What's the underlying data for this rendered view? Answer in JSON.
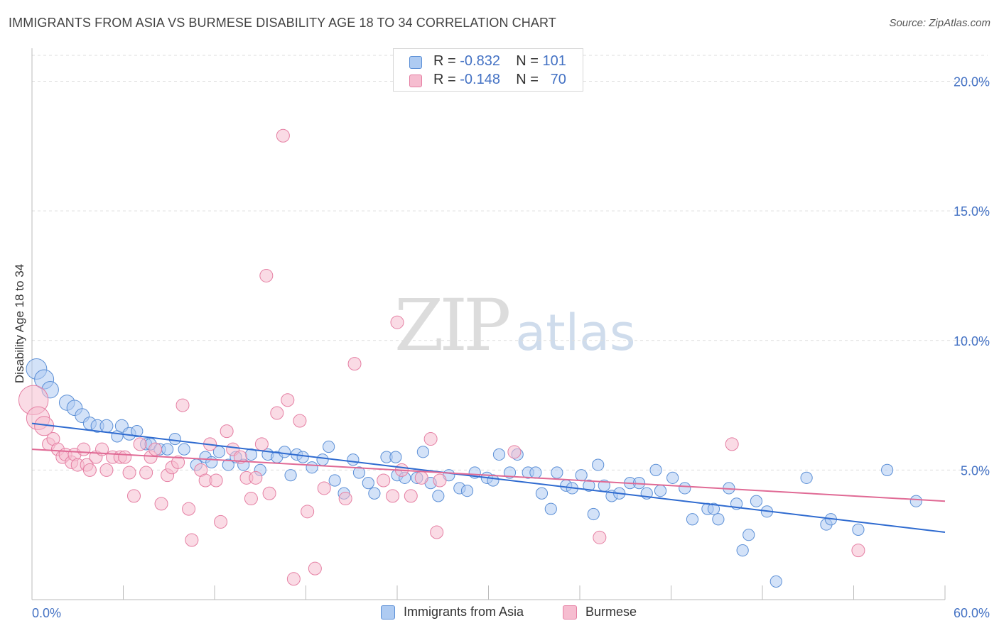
{
  "title": "IMMIGRANTS FROM ASIA VS BURMESE DISABILITY AGE 18 TO 34 CORRELATION CHART",
  "source": "Source: ZipAtlas.com",
  "watermark": {
    "zip": "ZIP",
    "atlas": "atlas"
  },
  "colors": {
    "blue_fill": "#aecbf2",
    "blue_stroke": "#5b8fd6",
    "blue_line": "#2f6bd0",
    "pink_fill": "#f6bdd0",
    "pink_stroke": "#e57fa3",
    "pink_line": "#e06a95",
    "tick_label": "#4472c4",
    "grid": "#dddddd"
  },
  "legend_top": [
    {
      "r_label": "R = ",
      "r_value": "-0.832",
      "n_label": "N = ",
      "n_value": "101"
    },
    {
      "r_label": "R = ",
      "r_value": "-0.148",
      "n_label": "N = ",
      "n_value": "70"
    }
  ],
  "chart_data": {
    "type": "scatter",
    "title": "IMMIGRANTS FROM ASIA VS BURMESE DISABILITY AGE 18 TO 34 CORRELATION CHART",
    "xlabel": "",
    "ylabel": "Disability Age 18 to 34",
    "xlim": [
      0,
      60
    ],
    "ylim": [
      0,
      21
    ],
    "x_tick_labels": [
      "0.0%",
      "60.0%"
    ],
    "y_ticks": [
      5,
      10,
      15,
      20
    ],
    "y_tick_labels": [
      "5.0%",
      "10.0%",
      "15.0%",
      "20.0%"
    ],
    "grid": true,
    "legend_position": "bottom-center",
    "series": [
      {
        "name": "Immigrants from Asia",
        "R": -0.832,
        "N": 101,
        "trend": {
          "x": [
            0,
            60
          ],
          "y": [
            6.8,
            2.6
          ]
        },
        "points": [
          [
            0.3,
            8.9,
            1.6
          ],
          [
            0.8,
            8.5,
            1.5
          ],
          [
            1.2,
            8.1,
            1.3
          ],
          [
            2.3,
            7.6,
            1.2
          ],
          [
            2.8,
            7.4,
            1.2
          ],
          [
            3.3,
            7.1,
            1.1
          ],
          [
            3.8,
            6.8,
            1.0
          ],
          [
            4.3,
            6.7,
            1.0
          ],
          [
            4.9,
            6.7,
            1.0
          ],
          [
            5.6,
            6.3,
            0.9
          ],
          [
            5.9,
            6.7,
            1.0
          ],
          [
            6.4,
            6.4,
            1.0
          ],
          [
            6.9,
            6.5,
            0.9
          ],
          [
            7.5,
            6.0,
            0.9
          ],
          [
            7.8,
            6.0,
            0.9
          ],
          [
            8.4,
            5.8,
            0.9
          ],
          [
            8.9,
            5.8,
            0.9
          ],
          [
            9.4,
            6.2,
            0.9
          ],
          [
            10.0,
            5.8,
            0.9
          ],
          [
            10.8,
            5.2,
            0.9
          ],
          [
            11.4,
            5.5,
            0.9
          ],
          [
            11.8,
            5.3,
            0.9
          ],
          [
            12.3,
            5.7,
            0.9
          ],
          [
            12.9,
            5.2,
            0.9
          ],
          [
            13.4,
            5.5,
            0.9
          ],
          [
            13.9,
            5.2,
            0.9
          ],
          [
            14.4,
            5.6,
            0.9
          ],
          [
            15.0,
            5.0,
            0.9
          ],
          [
            15.5,
            5.6,
            0.9
          ],
          [
            16.1,
            5.5,
            0.9
          ],
          [
            16.6,
            5.7,
            0.9
          ],
          [
            17.0,
            4.8,
            0.9
          ],
          [
            17.4,
            5.6,
            0.9
          ],
          [
            17.8,
            5.5,
            0.9
          ],
          [
            18.4,
            5.1,
            0.9
          ],
          [
            19.1,
            5.4,
            0.9
          ],
          [
            19.5,
            5.9,
            0.9
          ],
          [
            19.9,
            4.6,
            0.9
          ],
          [
            20.5,
            4.1,
            0.9
          ],
          [
            21.1,
            5.4,
            0.9
          ],
          [
            21.5,
            4.9,
            0.9
          ],
          [
            22.1,
            4.5,
            0.9
          ],
          [
            22.5,
            4.1,
            0.9
          ],
          [
            23.3,
            5.5,
            0.9
          ],
          [
            23.9,
            5.5,
            0.9
          ],
          [
            24.0,
            4.8,
            0.9
          ],
          [
            24.5,
            4.7,
            0.9
          ],
          [
            25.3,
            4.7,
            0.9
          ],
          [
            25.7,
            5.7,
            0.9
          ],
          [
            26.2,
            4.5,
            0.9
          ],
          [
            26.7,
            4.0,
            0.9
          ],
          [
            27.4,
            4.8,
            0.9
          ],
          [
            28.1,
            4.3,
            0.9
          ],
          [
            28.6,
            4.2,
            0.9
          ],
          [
            29.1,
            4.9,
            0.9
          ],
          [
            29.9,
            4.7,
            0.9
          ],
          [
            30.3,
            4.6,
            0.9
          ],
          [
            30.7,
            5.6,
            0.9
          ],
          [
            31.4,
            4.9,
            0.9
          ],
          [
            31.9,
            5.6,
            0.9
          ],
          [
            32.6,
            4.9,
            0.9
          ],
          [
            33.1,
            4.9,
            0.9
          ],
          [
            33.5,
            4.1,
            0.9
          ],
          [
            34.1,
            3.5,
            0.9
          ],
          [
            34.5,
            4.9,
            0.9
          ],
          [
            35.1,
            4.4,
            0.9
          ],
          [
            35.5,
            4.3,
            0.9
          ],
          [
            36.1,
            4.8,
            0.9
          ],
          [
            36.6,
            4.4,
            0.9
          ],
          [
            36.9,
            3.3,
            0.9
          ],
          [
            37.2,
            5.2,
            0.9
          ],
          [
            37.6,
            4.4,
            0.9
          ],
          [
            38.1,
            4.0,
            0.9
          ],
          [
            38.6,
            4.1,
            0.9
          ],
          [
            39.3,
            4.5,
            0.9
          ],
          [
            39.9,
            4.5,
            0.9
          ],
          [
            40.4,
            4.1,
            0.9
          ],
          [
            41.0,
            5.0,
            0.9
          ],
          [
            41.3,
            4.2,
            0.9
          ],
          [
            42.1,
            4.7,
            0.9
          ],
          [
            42.9,
            4.3,
            0.9
          ],
          [
            43.4,
            3.1,
            0.9
          ],
          [
            44.4,
            3.5,
            0.9
          ],
          [
            44.8,
            3.5,
            0.9
          ],
          [
            45.1,
            3.1,
            0.9
          ],
          [
            45.8,
            4.3,
            0.9
          ],
          [
            46.3,
            3.7,
            0.9
          ],
          [
            46.7,
            1.9,
            0.9
          ],
          [
            47.1,
            2.5,
            0.9
          ],
          [
            47.6,
            3.8,
            0.9
          ],
          [
            48.3,
            3.4,
            0.9
          ],
          [
            48.9,
            0.7,
            0.9
          ],
          [
            50.9,
            4.7,
            0.9
          ],
          [
            52.2,
            2.9,
            0.9
          ],
          [
            52.5,
            3.1,
            0.9
          ],
          [
            54.3,
            2.7,
            0.9
          ],
          [
            56.2,
            5.0,
            0.9
          ],
          [
            58.1,
            3.8,
            0.9
          ]
        ]
      },
      {
        "name": "Burmese",
        "R": -0.148,
        "N": 70,
        "trend": {
          "x": [
            0,
            60
          ],
          "y": [
            5.8,
            3.8
          ]
        },
        "points": [
          [
            0.1,
            7.7,
            2.3
          ],
          [
            0.4,
            7.0,
            1.8
          ],
          [
            0.8,
            6.7,
            1.5
          ],
          [
            1.1,
            6.0,
            1.0
          ],
          [
            1.4,
            6.2,
            1.0
          ],
          [
            1.7,
            5.8,
            1.0
          ],
          [
            2.0,
            5.5,
            1.0
          ],
          [
            2.2,
            5.6,
            1.0
          ],
          [
            2.6,
            5.3,
            1.0
          ],
          [
            2.8,
            5.6,
            1.0
          ],
          [
            3.0,
            5.2,
            1.0
          ],
          [
            3.4,
            5.8,
            1.0
          ],
          [
            3.6,
            5.2,
            1.0
          ],
          [
            3.8,
            5.0,
            1.0
          ],
          [
            4.2,
            5.5,
            1.0
          ],
          [
            4.6,
            5.8,
            1.0
          ],
          [
            4.9,
            5.0,
            1.0
          ],
          [
            5.3,
            5.5,
            1.0
          ],
          [
            5.8,
            5.5,
            1.0
          ],
          [
            6.1,
            5.5,
            1.0
          ],
          [
            6.4,
            4.9,
            1.0
          ],
          [
            6.7,
            4.0,
            1.0
          ],
          [
            7.1,
            6.0,
            1.0
          ],
          [
            7.5,
            4.9,
            1.0
          ],
          [
            7.8,
            5.5,
            1.0
          ],
          [
            8.1,
            5.8,
            1.0
          ],
          [
            8.5,
            3.7,
            1.0
          ],
          [
            8.9,
            4.8,
            1.0
          ],
          [
            9.2,
            5.1,
            1.0
          ],
          [
            9.6,
            5.3,
            1.0
          ],
          [
            9.9,
            7.5,
            1.0
          ],
          [
            10.3,
            3.5,
            1.0
          ],
          [
            10.5,
            2.3,
            1.0
          ],
          [
            11.1,
            5.0,
            1.0
          ],
          [
            11.4,
            4.6,
            1.0
          ],
          [
            11.7,
            6.0,
            1.0
          ],
          [
            12.1,
            4.6,
            1.0
          ],
          [
            12.4,
            3.0,
            1.0
          ],
          [
            12.8,
            6.5,
            1.0
          ],
          [
            13.2,
            5.8,
            1.0
          ],
          [
            13.7,
            5.5,
            1.0
          ],
          [
            14.1,
            4.7,
            1.0
          ],
          [
            14.4,
            3.9,
            1.0
          ],
          [
            14.7,
            4.7,
            1.0
          ],
          [
            15.1,
            6.0,
            1.0
          ],
          [
            15.4,
            12.5,
            1.0
          ],
          [
            15.6,
            4.1,
            1.0
          ],
          [
            16.1,
            7.2,
            1.0
          ],
          [
            16.5,
            17.9,
            1.0
          ],
          [
            16.8,
            7.7,
            1.0
          ],
          [
            17.2,
            0.8,
            1.0
          ],
          [
            17.6,
            6.9,
            1.0
          ],
          [
            18.1,
            3.4,
            1.0
          ],
          [
            18.6,
            1.2,
            1.0
          ],
          [
            19.2,
            4.3,
            1.0
          ],
          [
            20.6,
            3.9,
            1.0
          ],
          [
            21.2,
            9.1,
            1.0
          ],
          [
            23.1,
            4.6,
            1.0
          ],
          [
            23.7,
            4.0,
            1.0
          ],
          [
            24.0,
            10.7,
            1.0
          ],
          [
            24.3,
            5.0,
            1.0
          ],
          [
            24.9,
            4.0,
            1.0
          ],
          [
            25.6,
            4.7,
            1.0
          ],
          [
            26.2,
            6.2,
            1.0
          ],
          [
            26.6,
            2.6,
            1.0
          ],
          [
            26.8,
            4.6,
            1.0
          ],
          [
            31.7,
            5.7,
            1.0
          ],
          [
            37.3,
            2.4,
            1.0
          ],
          [
            46.0,
            6.0,
            1.0
          ],
          [
            54.3,
            1.9,
            1.0
          ]
        ]
      }
    ]
  }
}
